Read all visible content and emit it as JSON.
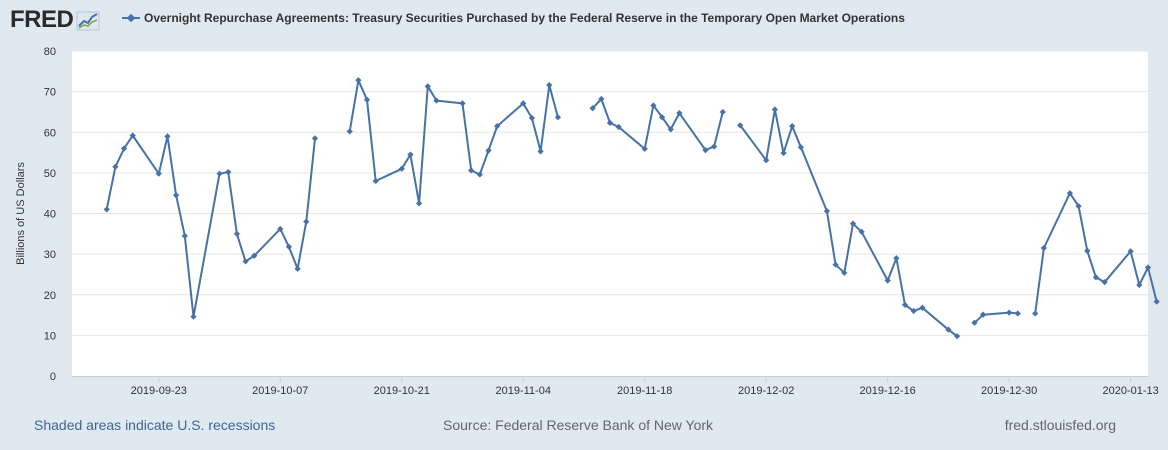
{
  "header": {
    "logo_text": "FRED",
    "logo_icon": "line-graph-icon"
  },
  "colors": {
    "background": "#e1e9f0",
    "plot_background": "#ffffff",
    "series": "#4572a7",
    "grid": "#e6e6e6",
    "link": "#3d6698"
  },
  "footer": {
    "recessions_link": "Shaded areas indicate U.S. recessions",
    "source": "Source: Federal Reserve Bank of New York",
    "site": "fred.stlouisfed.org"
  },
  "chart_data": {
    "type": "line",
    "title": "Overnight Repurchase Agreements: Treasury Securities Purchased by the Federal Reserve in the Temporary Open Market Operations",
    "xlabel": "",
    "ylabel": "Billions of US Dollars",
    "ylim": [
      0,
      80
    ],
    "yticks": [
      0,
      10,
      20,
      30,
      40,
      50,
      60,
      70,
      80
    ],
    "xlim": [
      "2019-09-13",
      "2020-01-15"
    ],
    "xticks": [
      "2019-09-23",
      "2019-10-07",
      "2019-10-21",
      "2019-11-04",
      "2019-11-18",
      "2019-12-02",
      "2019-12-16",
      "2019-12-30",
      "2020-01-13"
    ],
    "grid": true,
    "legend": "top-left",
    "series": [
      {
        "name": "Overnight Repurchase Agreements: Treasury Securities Purchased by the Federal Reserve in the Temporary Open Market Operations",
        "segments": [
          [
            {
              "x": "2019-09-17",
              "y": 41
            },
            {
              "x": "2019-09-18",
              "y": 51.5
            },
            {
              "x": "2019-09-19",
              "y": 56
            },
            {
              "x": "2019-09-20",
              "y": 59.2
            },
            {
              "x": "2019-09-23",
              "y": 49.8
            },
            {
              "x": "2019-09-24",
              "y": 59
            },
            {
              "x": "2019-09-25",
              "y": 44.5
            },
            {
              "x": "2019-09-26",
              "y": 34.5
            },
            {
              "x": "2019-09-27",
              "y": 14.6
            },
            {
              "x": "2019-09-30",
              "y": 49.8
            },
            {
              "x": "2019-10-01",
              "y": 50.2
            },
            {
              "x": "2019-10-02",
              "y": 35
            },
            {
              "x": "2019-10-03",
              "y": 28.2
            },
            {
              "x": "2019-10-04",
              "y": 29.6
            },
            {
              "x": "2019-10-07",
              "y": 36.2
            },
            {
              "x": "2019-10-08",
              "y": 31.8
            },
            {
              "x": "2019-10-09",
              "y": 26.4
            },
            {
              "x": "2019-10-10",
              "y": 38
            },
            {
              "x": "2019-10-11",
              "y": 58.5
            }
          ],
          [
            {
              "x": "2019-10-15",
              "y": 60.2
            },
            {
              "x": "2019-10-16",
              "y": 72.8
            },
            {
              "x": "2019-10-17",
              "y": 68
            },
            {
              "x": "2019-10-18",
              "y": 48
            },
            {
              "x": "2019-10-21",
              "y": 51
            },
            {
              "x": "2019-10-22",
              "y": 54.5
            },
            {
              "x": "2019-10-23",
              "y": 42.5
            },
            {
              "x": "2019-10-24",
              "y": 71.3
            },
            {
              "x": "2019-10-25",
              "y": 67.8
            },
            {
              "x": "2019-10-28",
              "y": 67.1
            },
            {
              "x": "2019-10-29",
              "y": 50.6
            },
            {
              "x": "2019-10-30",
              "y": 49.6
            },
            {
              "x": "2019-10-31",
              "y": 55.5
            },
            {
              "x": "2019-11-01",
              "y": 61.5
            },
            {
              "x": "2019-11-04",
              "y": 67.1
            },
            {
              "x": "2019-11-05",
              "y": 63.5
            },
            {
              "x": "2019-11-06",
              "y": 55.3
            },
            {
              "x": "2019-11-07",
              "y": 71.6
            },
            {
              "x": "2019-11-08",
              "y": 63.7
            }
          ],
          [
            {
              "x": "2019-11-12",
              "y": 65.9
            },
            {
              "x": "2019-11-13",
              "y": 68.2
            },
            {
              "x": "2019-11-14",
              "y": 62.3
            },
            {
              "x": "2019-11-15",
              "y": 61.3
            },
            {
              "x": "2019-11-18",
              "y": 55.9
            },
            {
              "x": "2019-11-19",
              "y": 66.6
            },
            {
              "x": "2019-11-20",
              "y": 63.7
            },
            {
              "x": "2019-11-21",
              "y": 60.7
            },
            {
              "x": "2019-11-22",
              "y": 64.7
            },
            {
              "x": "2019-11-25",
              "y": 55.6
            },
            {
              "x": "2019-11-26",
              "y": 56.5
            },
            {
              "x": "2019-11-27",
              "y": 65
            }
          ],
          [
            {
              "x": "2019-11-29",
              "y": 61.7
            },
            {
              "x": "2019-12-02",
              "y": 53.1
            },
            {
              "x": "2019-12-03",
              "y": 65.6
            },
            {
              "x": "2019-12-04",
              "y": 54.9
            },
            {
              "x": "2019-12-05",
              "y": 61.5
            },
            {
              "x": "2019-12-06",
              "y": 56.3
            },
            {
              "x": "2019-12-09",
              "y": 40.6
            },
            {
              "x": "2019-12-10",
              "y": 27.4
            },
            {
              "x": "2019-12-11",
              "y": 25.4
            },
            {
              "x": "2019-12-12",
              "y": 37.5
            },
            {
              "x": "2019-12-13",
              "y": 35.5
            },
            {
              "x": "2019-12-16",
              "y": 23.5
            },
            {
              "x": "2019-12-17",
              "y": 29
            },
            {
              "x": "2019-12-18",
              "y": 17.5
            },
            {
              "x": "2019-12-19",
              "y": 16
            },
            {
              "x": "2019-12-20",
              "y": 16.8
            },
            {
              "x": "2019-12-23",
              "y": 11.4
            },
            {
              "x": "2019-12-24",
              "y": 9.8
            }
          ],
          [
            {
              "x": "2019-12-26",
              "y": 13.1
            },
            {
              "x": "2019-12-27",
              "y": 15.1
            },
            {
              "x": "2019-12-30",
              "y": 15.6
            },
            {
              "x": "2019-12-31",
              "y": 15.4
            }
          ],
          [
            {
              "x": "2020-01-02",
              "y": 15.4
            },
            {
              "x": "2020-01-03",
              "y": 31.5
            },
            {
              "x": "2020-01-06",
              "y": 45
            },
            {
              "x": "2020-01-07",
              "y": 41.8
            },
            {
              "x": "2020-01-08",
              "y": 30.8
            },
            {
              "x": "2020-01-09",
              "y": 24.3
            },
            {
              "x": "2020-01-10",
              "y": 23.1
            },
            {
              "x": "2020-01-13",
              "y": 30.7
            },
            {
              "x": "2020-01-14",
              "y": 22.4
            },
            {
              "x": "2020-01-15",
              "y": 26.7
            },
            {
              "x": "2020-01-16",
              "y": 18.3
            }
          ]
        ]
      }
    ]
  }
}
